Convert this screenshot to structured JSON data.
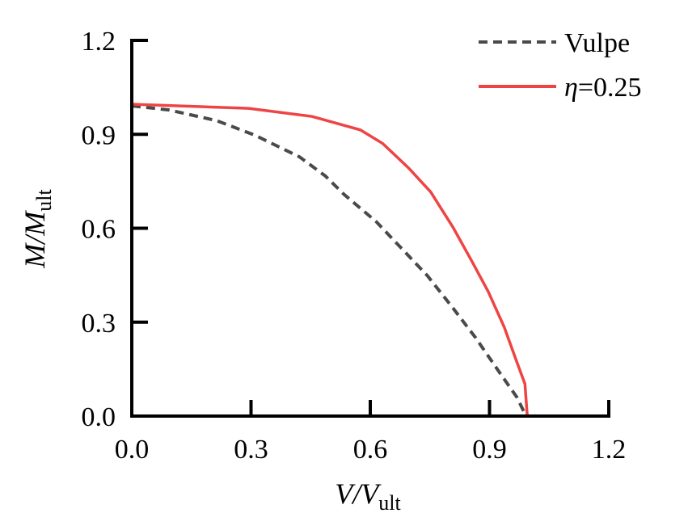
{
  "chart_data": {
    "type": "line",
    "title": "",
    "xlabel": {
      "main": "V/V",
      "sub": "ult"
    },
    "ylabel": {
      "main": "M/M",
      "sub": "ult"
    },
    "xlim": [
      0,
      1.2
    ],
    "ylim": [
      0,
      1.2
    ],
    "xticks": [
      "0.0",
      "0.3",
      "0.6",
      "0.9",
      "1.2"
    ],
    "yticks": [
      "0.0",
      "0.3",
      "0.6",
      "0.9",
      "1.2"
    ],
    "grid": false,
    "legend_position": "top-right",
    "series": [
      {
        "name": "Vulpe",
        "color": "#4a4a4a",
        "style": "dashed",
        "x": [
          0,
          0.092,
          0.213,
          0.31,
          0.422,
          0.487,
          0.535,
          0.615,
          0.68,
          0.744,
          0.808,
          0.865,
          0.921,
          0.969,
          0.992
        ],
        "y": [
          0.991,
          0.978,
          0.944,
          0.897,
          0.828,
          0.767,
          0.707,
          0.621,
          0.534,
          0.448,
          0.345,
          0.25,
          0.147,
          0.06,
          0
        ]
      },
      {
        "name_prefix": "η",
        "name": "=0.25",
        "color": "#ee4444",
        "style": "solid",
        "x": [
          0,
          0.294,
          0.454,
          0.575,
          0.631,
          0.696,
          0.752,
          0.808,
          0.857,
          0.897,
          0.937,
          0.969,
          0.989,
          0.995
        ],
        "y": [
          0.996,
          0.983,
          0.957,
          0.914,
          0.871,
          0.793,
          0.716,
          0.603,
          0.491,
          0.397,
          0.284,
          0.172,
          0.103,
          0
        ]
      }
    ]
  }
}
